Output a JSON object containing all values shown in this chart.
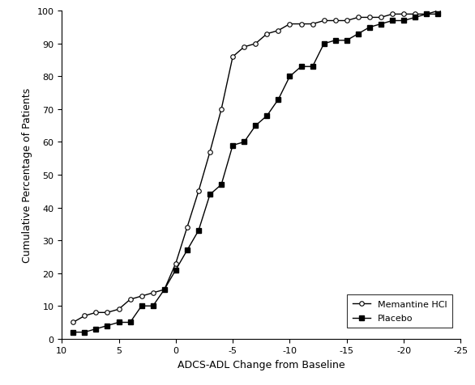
{
  "title": "",
  "xlabel": "ADCS-ADL Change from Baseline",
  "ylabel": "Cumulative Percentage of Patients",
  "xlim": [
    10,
    -25
  ],
  "ylim": [
    0,
    100
  ],
  "xticks": [
    10,
    5,
    0,
    -5,
    -10,
    -15,
    -20,
    -25
  ],
  "yticks": [
    0,
    10,
    20,
    30,
    40,
    50,
    60,
    70,
    80,
    90,
    100
  ],
  "placebo_x": [
    9,
    8,
    7,
    6,
    5,
    4,
    3,
    2,
    1,
    0,
    -1,
    -2,
    -3,
    -4,
    -5,
    -6,
    -7,
    -8,
    -9,
    -10,
    -11,
    -12,
    -13,
    -14,
    -15,
    -16,
    -17,
    -18,
    -19,
    -20,
    -21,
    -22,
    -23
  ],
  "placebo_y": [
    2,
    2,
    3,
    4,
    5,
    5,
    10,
    10,
    15,
    21,
    27,
    33,
    44,
    47,
    59,
    60,
    65,
    68,
    73,
    80,
    83,
    83,
    90,
    91,
    91,
    93,
    95,
    96,
    97,
    97,
    98,
    99,
    99
  ],
  "memantine_x": [
    9,
    8,
    7,
    6,
    5,
    4,
    3,
    2,
    1,
    0,
    -1,
    -2,
    -3,
    -4,
    -5,
    -6,
    -7,
    -8,
    -9,
    -10,
    -11,
    -12,
    -13,
    -14,
    -15,
    -16,
    -17,
    -18,
    -19,
    -20,
    -21,
    -22,
    -23
  ],
  "memantine_y": [
    5,
    7,
    8,
    8,
    9,
    12,
    13,
    14,
    15,
    23,
    34,
    45,
    57,
    70,
    86,
    89,
    90,
    93,
    94,
    96,
    96,
    96,
    97,
    97,
    97,
    98,
    98,
    98,
    99,
    99,
    99,
    99,
    100
  ],
  "placebo_color": "#000000",
  "memantine_color": "#000000",
  "background_color": "#ffffff",
  "placebo_label": "Placebo",
  "memantine_label": "Memantine HCl",
  "marker_placebo": "s",
  "marker_memantine": "o",
  "markersize_placebo": 5,
  "markersize_memantine": 4,
  "linewidth": 1.0,
  "tick_labelsize": 8,
  "axis_labelsize": 9
}
